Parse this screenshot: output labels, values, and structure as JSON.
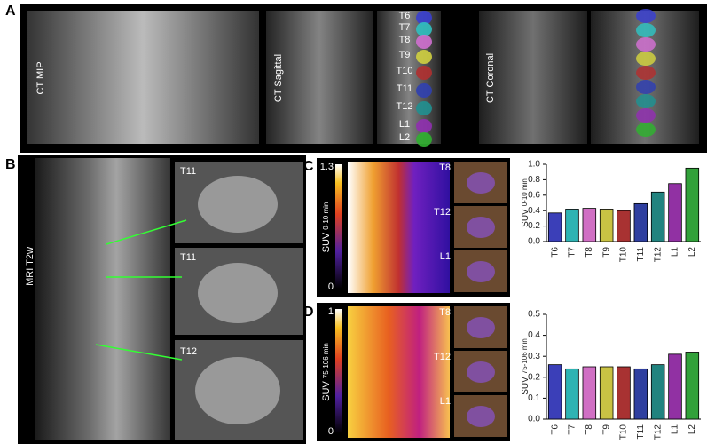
{
  "figure": {
    "panel_labels": [
      "A",
      "B",
      "C",
      "D"
    ],
    "panel_a": {
      "labels": [
        "CT MIP",
        "CT Sagittal",
        "CT Coronal"
      ],
      "vertebrae": [
        "T6",
        "T7",
        "T8",
        "T9",
        "T10",
        "T11",
        "T12",
        "L1",
        "L2"
      ]
    },
    "panel_b": {
      "label": "MRI T2w",
      "slices": [
        "T11",
        "T11",
        "T12"
      ]
    },
    "panel_c": {
      "colorbar_max": 1.3,
      "colorbar_min": 0,
      "axis_label": "SUV",
      "axis_label_sub": "0-10 min",
      "slices": [
        "T8",
        "T12",
        "L1"
      ]
    },
    "panel_d": {
      "colorbar_max": 1,
      "colorbar_min": 0,
      "axis_label": "SUV",
      "axis_label_sub": "75-106 min",
      "slices": [
        "T8",
        "T12",
        "L1"
      ]
    }
  },
  "chart_data": [
    {
      "type": "bar",
      "y_label": "SUV",
      "y_label_sub": "0-10 min",
      "categories": [
        "T6",
        "T7",
        "T8",
        "T9",
        "T10",
        "T11",
        "T12",
        "L1",
        "L2"
      ],
      "values": [
        0.37,
        0.42,
        0.43,
        0.42,
        0.4,
        0.49,
        0.64,
        0.75,
        0.95
      ],
      "colors": [
        "#3b3fb8",
        "#2fb3b3",
        "#d06fc4",
        "#c9c244",
        "#a83232",
        "#2f3fa0",
        "#21837f",
        "#9131a3",
        "#32a13a"
      ],
      "ylim": [
        0,
        1.0
      ],
      "yticks": [
        {
          "value": 0,
          "label": "0.0"
        },
        0.2,
        0.4,
        0.6,
        0.8,
        {
          "value": 1.0,
          "label": "1.0"
        }
      ]
    },
    {
      "type": "bar",
      "y_label": "SUV",
      "y_label_sub": "75-106 min",
      "categories": [
        "T6",
        "T7",
        "T8",
        "T9",
        "T10",
        "T11",
        "T12",
        "L1",
        "L2"
      ],
      "values": [
        0.26,
        0.24,
        0.25,
        0.25,
        0.25,
        0.24,
        0.26,
        0.31,
        0.32
      ],
      "colors": [
        "#3b3fb8",
        "#2fb3b3",
        "#d06fc4",
        "#c9c244",
        "#a83232",
        "#2f3fa0",
        "#21837f",
        "#9131a3",
        "#32a13a"
      ],
      "ylim": [
        0,
        0.5
      ],
      "yticks": [
        {
          "value": 0,
          "label": "0.0"
        },
        0.1,
        0.2,
        0.3,
        0.4,
        0.5
      ]
    }
  ]
}
